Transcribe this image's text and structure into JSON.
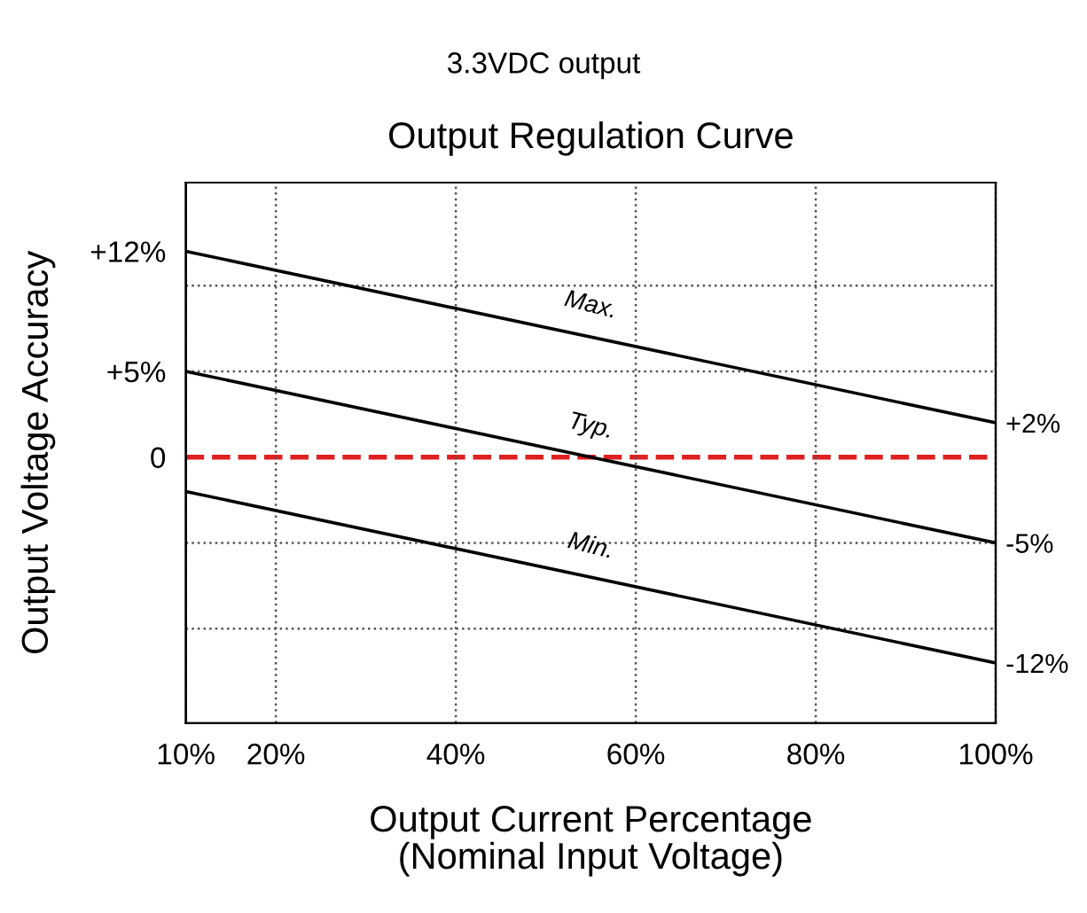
{
  "chart_data": {
    "type": "line",
    "title": "3.3VDC output",
    "subtitle": "Output Regulation Curve",
    "xlabel": "Output Current Percentage\n(Nominal Input Voltage)",
    "ylabel": "Output Voltage Accuracy",
    "x": [
      10,
      100
    ],
    "series": [
      {
        "name": "Max.",
        "color": "#000000",
        "values": [
          12,
          2
        ]
      },
      {
        "name": "Typ.",
        "color": "#000000",
        "values": [
          5,
          -5
        ]
      },
      {
        "name": "Min.",
        "color": "#000000",
        "values": [
          -2,
          -12
        ]
      }
    ],
    "xlim": [
      10,
      100
    ],
    "xticks": [
      {
        "value": 10,
        "label": "10%"
      },
      {
        "value": 20,
        "label": "20%"
      },
      {
        "value": 40,
        "label": "40%"
      },
      {
        "value": 60,
        "label": "60%"
      },
      {
        "value": 80,
        "label": "80%"
      },
      {
        "value": 100,
        "label": "100%"
      }
    ],
    "ylim": [
      -15.5,
      16
    ],
    "yticks": [
      {
        "value": 12,
        "label": "+12%"
      },
      {
        "value": 5,
        "label": "+5%"
      },
      0
    ],
    "y2lim": [
      -15.5,
      16
    ],
    "y2ticks": [
      {
        "value": 2,
        "label": "+2%"
      },
      {
        "value": -5,
        "label": "-5%"
      },
      {
        "value": -12,
        "label": "-12%"
      }
    ],
    "ref_lines": [
      {
        "axis": "y",
        "value": 0,
        "color": "#e02020",
        "line_style": "dashed"
      },
      {
        "axis": "y",
        "value": 10,
        "color": "#555555",
        "line_style": "dotted"
      },
      {
        "axis": "y",
        "value": 5,
        "color": "#555555",
        "line_style": "dotted"
      },
      {
        "axis": "y",
        "value": -5,
        "color": "#555555",
        "line_style": "dotted"
      },
      {
        "axis": "y",
        "value": -10,
        "color": "#555555",
        "line_style": "dotted"
      }
    ],
    "grid": "x",
    "legend": false,
    "marker": "none",
    "line_style": "solid"
  }
}
